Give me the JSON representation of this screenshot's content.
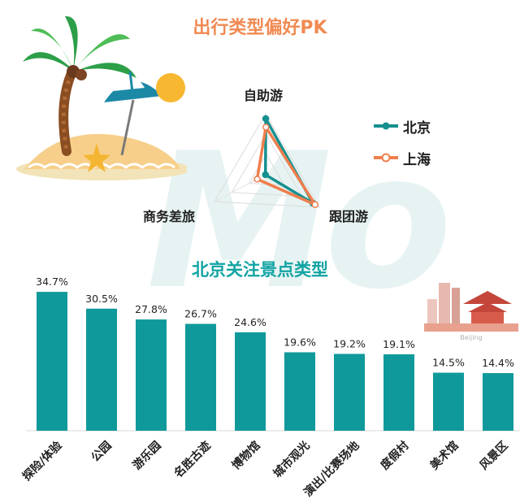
{
  "chart_data": [
    {
      "type": "radar",
      "title": "出行类型偏好PK",
      "axes": [
        "自助游",
        "跟团游",
        "商务差旅"
      ],
      "series": [
        {
          "name": "北京",
          "values": [
            0.92,
            0.88,
            0.02
          ],
          "color": "#16908f"
        },
        {
          "name": "上海",
          "values": [
            0.78,
            0.92,
            0.18
          ],
          "color": "#ef7e4c"
        }
      ],
      "grid": true,
      "legend": "right"
    },
    {
      "type": "bar",
      "title": "北京关注景点类型",
      "categories": [
        "探险/体验",
        "公园",
        "游乐园",
        "名胜古迹",
        "博物馆",
        "城市观光",
        "演出/比赛场地",
        "度假村",
        "美术馆",
        "风景区"
      ],
      "values": [
        34.7,
        30.5,
        27.8,
        26.7,
        24.6,
        19.6,
        19.2,
        19.1,
        14.5,
        14.4
      ],
      "value_labels": [
        "34.7%",
        "30.5%",
        "27.8%",
        "26.7%",
        "24.6%",
        "19.6%",
        "19.2%",
        "19.1%",
        "14.5%",
        "14.4%"
      ],
      "ylim": [
        0,
        40
      ],
      "color": "#10999a",
      "grid": false
    }
  ],
  "illustration_labels": {
    "beijing_sign": "Beijing"
  }
}
